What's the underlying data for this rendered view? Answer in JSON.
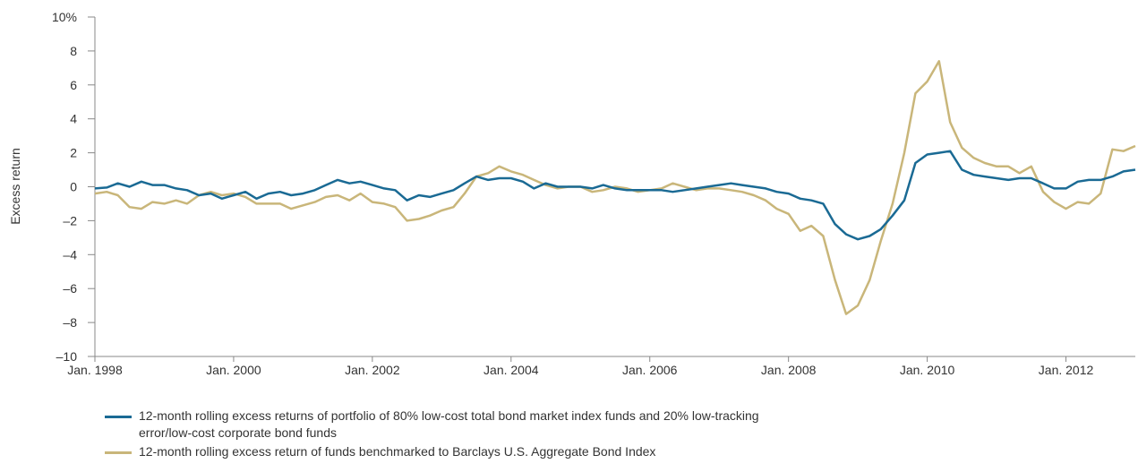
{
  "chart_data": {
    "type": "line",
    "y_label": "Excess return",
    "x": [
      1998.0,
      1998.17,
      1998.33,
      1998.5,
      1998.67,
      1998.83,
      1999.0,
      1999.17,
      1999.33,
      1999.5,
      1999.67,
      1999.83,
      2000.0,
      2000.17,
      2000.33,
      2000.5,
      2000.67,
      2000.83,
      2001.0,
      2001.17,
      2001.33,
      2001.5,
      2001.67,
      2001.83,
      2002.0,
      2002.17,
      2002.33,
      2002.5,
      2002.67,
      2002.83,
      2003.0,
      2003.17,
      2003.33,
      2003.5,
      2003.67,
      2003.83,
      2004.0,
      2004.17,
      2004.33,
      2004.5,
      2004.67,
      2004.83,
      2005.0,
      2005.17,
      2005.33,
      2005.5,
      2005.67,
      2005.83,
      2006.0,
      2006.17,
      2006.33,
      2006.5,
      2006.67,
      2006.83,
      2007.0,
      2007.17,
      2007.33,
      2007.5,
      2007.67,
      2007.83,
      2008.0,
      2008.17,
      2008.33,
      2008.5,
      2008.67,
      2008.83,
      2009.0,
      2009.17,
      2009.33,
      2009.5,
      2009.67,
      2009.83,
      2010.0,
      2010.17,
      2010.33,
      2010.5,
      2010.67,
      2010.83,
      2011.0,
      2011.17,
      2011.33,
      2011.5,
      2011.67,
      2011.83,
      2012.0,
      2012.17,
      2012.33,
      2012.5,
      2012.67,
      2012.83,
      2013.0
    ],
    "series": [
      {
        "name": "12-month rolling excess returns of portfolio of 80% low-cost total bond market index funds and 20% low-tracking error/low-cost corporate bond funds",
        "color": "#1a6a94",
        "values": [
          -0.1,
          -0.05,
          0.2,
          0.0,
          0.3,
          0.1,
          0.1,
          -0.1,
          -0.2,
          -0.5,
          -0.4,
          -0.7,
          -0.5,
          -0.3,
          -0.7,
          -0.4,
          -0.3,
          -0.5,
          -0.4,
          -0.2,
          0.1,
          0.4,
          0.2,
          0.3,
          0.1,
          -0.1,
          -0.2,
          -0.8,
          -0.5,
          -0.6,
          -0.4,
          -0.2,
          0.2,
          0.6,
          0.4,
          0.5,
          0.5,
          0.3,
          -0.1,
          0.2,
          0.0,
          0.0,
          0.0,
          -0.1,
          0.1,
          -0.1,
          -0.2,
          -0.2,
          -0.2,
          -0.2,
          -0.3,
          -0.2,
          -0.1,
          0.0,
          0.1,
          0.2,
          0.1,
          0.0,
          -0.1,
          -0.3,
          -0.4,
          -0.7,
          -0.8,
          -1.0,
          -2.2,
          -2.8,
          -3.1,
          -2.9,
          -2.5,
          -1.7,
          -0.8,
          1.4,
          1.9,
          2.0,
          2.1,
          1.0,
          0.7,
          0.6,
          0.5,
          0.4,
          0.5,
          0.5,
          0.2,
          -0.1,
          -0.1,
          0.3,
          0.4,
          0.4,
          0.6,
          0.9,
          1.0
        ]
      },
      {
        "name": "12-month rolling excess return of funds benchmarked to Barclays U.S. Aggregate Bond Index",
        "color": "#c9b67a",
        "values": [
          -0.4,
          -0.3,
          -0.5,
          -1.2,
          -1.3,
          -0.9,
          -1.0,
          -0.8,
          -1.0,
          -0.5,
          -0.3,
          -0.5,
          -0.4,
          -0.6,
          -1.0,
          -1.0,
          -1.0,
          -1.3,
          -1.1,
          -0.9,
          -0.6,
          -0.5,
          -0.8,
          -0.4,
          -0.9,
          -1.0,
          -1.2,
          -2.0,
          -1.9,
          -1.7,
          -1.4,
          -1.2,
          -0.4,
          0.6,
          0.8,
          1.2,
          0.9,
          0.7,
          0.4,
          0.1,
          -0.1,
          0.0,
          0.0,
          -0.3,
          -0.2,
          0.0,
          -0.1,
          -0.3,
          -0.2,
          -0.1,
          0.2,
          0.0,
          -0.2,
          -0.1,
          -0.1,
          -0.2,
          -0.3,
          -0.5,
          -0.8,
          -1.3,
          -1.6,
          -2.6,
          -2.3,
          -2.9,
          -5.5,
          -7.5,
          -7.0,
          -5.5,
          -3.2,
          -1.0,
          2.0,
          5.5,
          6.2,
          7.4,
          3.8,
          2.3,
          1.7,
          1.4,
          1.2,
          1.2,
          0.8,
          1.2,
          -0.3,
          -0.9,
          -1.3,
          -0.9,
          -1.0,
          -0.4,
          2.2,
          2.1,
          2.4
        ]
      }
    ],
    "xlim": [
      1998,
      2013
    ],
    "xticks": [
      {
        "value": 1998,
        "label": "Jan. 1998"
      },
      {
        "value": 2000,
        "label": "Jan. 2000"
      },
      {
        "value": 2002,
        "label": "Jan. 2002"
      },
      {
        "value": 2004,
        "label": "Jan. 2004"
      },
      {
        "value": 2006,
        "label": "Jan. 2006"
      },
      {
        "value": 2008,
        "label": "Jan. 2008"
      },
      {
        "value": 2010,
        "label": "Jan. 2010"
      },
      {
        "value": 2012,
        "label": "Jan. 2012"
      }
    ],
    "ylim": [
      -10,
      10
    ],
    "yticks": [
      {
        "value": 10,
        "label": "10%"
      },
      8,
      6,
      4,
      2,
      0,
      {
        "value": -2,
        "label": "–2"
      },
      {
        "value": -4,
        "label": "–4"
      },
      {
        "value": -6,
        "label": "–6"
      },
      {
        "value": -8,
        "label": "–8"
      },
      {
        "value": -10,
        "label": "–10"
      }
    ]
  }
}
